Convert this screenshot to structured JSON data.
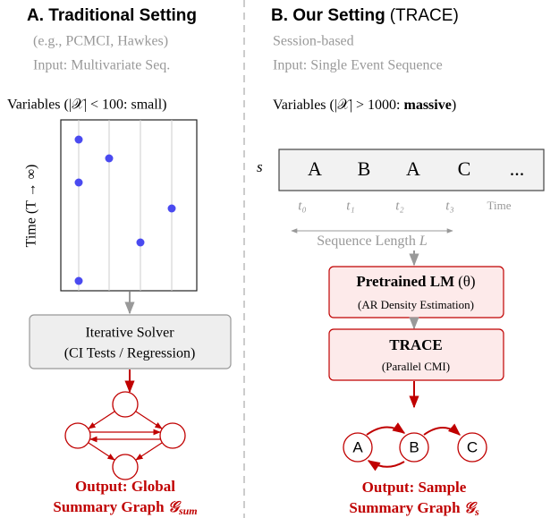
{
  "left": {
    "title": "A. Traditional Setting",
    "examples": "(e.g., PCMCI, Hawkes)",
    "input": "Input: Multivariate Seq.",
    "variables": "Variables (|𝒳| < 100: small)",
    "y_axis_label": "Time (T → ∞)",
    "solver": [
      "Iterative Solver",
      "(CI Tests / Regression)"
    ],
    "output": {
      "line1": "Output: Global",
      "line2": "Summary Graph ",
      "symbol": "𝒢",
      "sub": "sum"
    }
  },
  "right": {
    "title": "B. Our Setting",
    "title_note": "(TRACE)",
    "setting": "Session-based",
    "input": "Input: Single Event Sequence",
    "variables": {
      "prefix": "Variables (|𝒳| > 1000: ",
      "bold": "massive",
      "suffix": ")"
    },
    "sequence_label": "s",
    "tokens": [
      "A",
      "B",
      "A",
      "C",
      "..."
    ],
    "time_labels": [
      "t₀",
      "t₁",
      "t₂",
      "t₃",
      "Time"
    ],
    "length": {
      "text": "Sequence Length ",
      "symbol": "L"
    },
    "lm_box": {
      "title": "Pretrained LM",
      "param": "(θ)",
      "note": "(AR Density Estimation)"
    },
    "trace_box": {
      "title": "TRACE",
      "note": "(Parallel CMI)"
    },
    "nodes": [
      "A",
      "B",
      "C"
    ],
    "output": {
      "line1": "Output: Sample",
      "line2": "Summary Graph ",
      "symbol": "𝒢",
      "sub": "s"
    }
  }
}
